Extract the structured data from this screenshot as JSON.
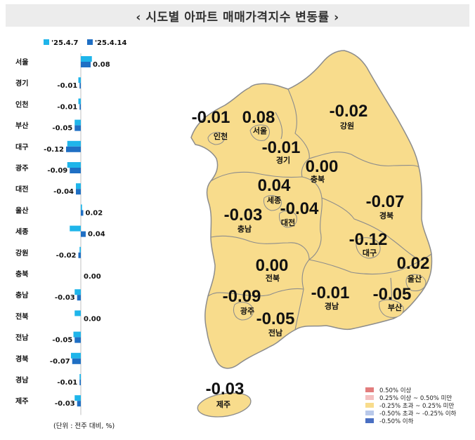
{
  "title": "‹ 시도별 아파트 매매가격지수 변동률 ›",
  "chart_data": {
    "type": "bar",
    "orientation": "horizontal",
    "categories": [
      "서울",
      "경기",
      "인천",
      "부산",
      "대구",
      "광주",
      "대전",
      "울산",
      "세종",
      "강원",
      "충북",
      "충남",
      "전북",
      "전남",
      "경북",
      "경남",
      "제주"
    ],
    "series": [
      {
        "name": "'25.4.7",
        "color": "#1fb5ea",
        "values": [
          0.09,
          -0.02,
          -0.02,
          -0.05,
          -0.11,
          -0.11,
          -0.04,
          0.01,
          -0.09,
          -0.01,
          0.0,
          -0.05,
          -0.05,
          -0.06,
          -0.08,
          -0.01,
          -0.05
        ]
      },
      {
        "name": "'25.4.14",
        "color": "#1f6fc4",
        "values": [
          0.08,
          -0.01,
          -0.01,
          -0.05,
          -0.12,
          -0.09,
          -0.04,
          0.02,
          0.04,
          -0.02,
          0.0,
          -0.03,
          0.0,
          -0.05,
          -0.07,
          -0.01,
          -0.03
        ]
      }
    ],
    "value_labels": [
      "0.08",
      "-0.01",
      "-0.01",
      "-0.05",
      "-0.12",
      "-0.09",
      "-0.04",
      "0.02",
      "0.04",
      "-0.02",
      "0.00",
      "-0.03",
      "0.00",
      "-0.05",
      "-0.07",
      "-0.01",
      "-0.03"
    ],
    "unit_note": "(단위 : 전주 대비, %)"
  },
  "map": {
    "regions": [
      {
        "name": "서울",
        "value": "0.08"
      },
      {
        "name": "인천",
        "value": "-0.01"
      },
      {
        "name": "경기",
        "value": "-0.01"
      },
      {
        "name": "강원",
        "value": "-0.02"
      },
      {
        "name": "충북",
        "value": "0.00"
      },
      {
        "name": "세종",
        "value": "0.04"
      },
      {
        "name": "대전",
        "value": "-0.04"
      },
      {
        "name": "충남",
        "value": "-0.03"
      },
      {
        "name": "경북",
        "value": "-0.07"
      },
      {
        "name": "대구",
        "value": "-0.12"
      },
      {
        "name": "울산",
        "value": "0.02"
      },
      {
        "name": "전북",
        "value": "0.00"
      },
      {
        "name": "광주",
        "value": "-0.09"
      },
      {
        "name": "전남",
        "value": "-0.05"
      },
      {
        "name": "경남",
        "value": "-0.01"
      },
      {
        "name": "부산",
        "value": "-0.05"
      },
      {
        "name": "제주",
        "value": "-0.03"
      }
    ],
    "fill_color": "#f8dc8c",
    "border_color": "#8c8c8c"
  },
  "legend": [
    {
      "label": "0.50% 이상",
      "color": "#e27d7d"
    },
    {
      "label": "0.25% 이상 ~ 0.50% 미만",
      "color": "#f4c0c0"
    },
    {
      "label": "-0.25% 초과 ~ 0.25% 미만",
      "color": "#f8dc8c"
    },
    {
      "label": "-0.50% 초과 ~ -0.25% 이하",
      "color": "#b9c9ea"
    },
    {
      "label": "-0.50% 이하",
      "color": "#4a6fc2"
    }
  ]
}
